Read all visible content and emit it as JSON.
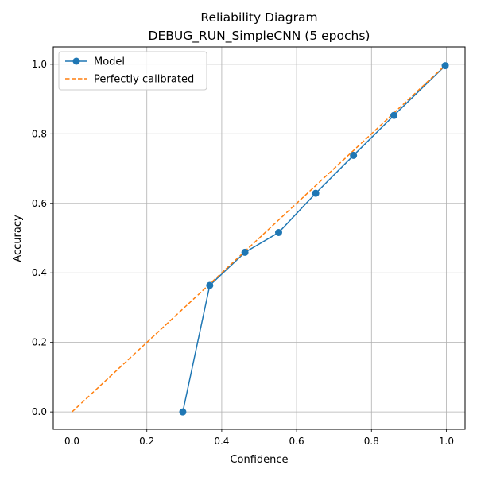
{
  "chart_data": {
    "type": "line",
    "title": "Reliability Diagram",
    "subtitle": "DEBUG_RUN_SimpleCNN (5 epochs)",
    "xlabel": "Confidence",
    "ylabel": "Accuracy",
    "xlim": [
      -0.05,
      1.05
    ],
    "ylim": [
      -0.05,
      1.05
    ],
    "xticks": [
      "0.0",
      "0.2",
      "0.4",
      "0.6",
      "0.8",
      "1.0"
    ],
    "yticks": [
      "0.0",
      "0.2",
      "0.4",
      "0.6",
      "0.8",
      "1.0"
    ],
    "grid": true,
    "legend_position": "top-left",
    "series": [
      {
        "name": "Model",
        "style": "solid-with-markers",
        "color": "#1f77b4",
        "x": [
          0.296,
          0.368,
          0.462,
          0.552,
          0.651,
          0.752,
          0.86,
          0.997
        ],
        "y": [
          0.0,
          0.364,
          0.459,
          0.516,
          0.629,
          0.738,
          0.853,
          0.996
        ]
      },
      {
        "name": "Perfectly calibrated",
        "style": "dashed",
        "color": "#ff7f0e",
        "x": [
          0,
          1
        ],
        "y": [
          0,
          1
        ]
      }
    ]
  }
}
